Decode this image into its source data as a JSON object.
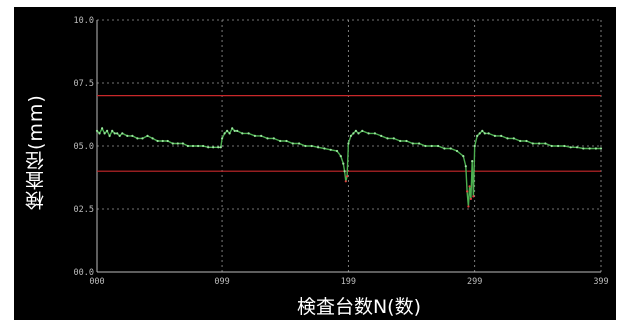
{
  "chart_data": {
    "type": "line",
    "title": "",
    "xlabel": "検査台数N(数)",
    "ylabel": "検査径(mm)",
    "xlim": [
      0,
      399
    ],
    "ylim": [
      0,
      10
    ],
    "x_ticks": [
      "000",
      "099",
      "199",
      "299",
      "399"
    ],
    "x_tick_values": [
      0,
      99,
      199,
      299,
      399
    ],
    "y_ticks": [
      "00.0",
      "02.5",
      "05.0",
      "07.5",
      "10.0"
    ],
    "y_tick_values": [
      0,
      2.5,
      5,
      7.5,
      10
    ],
    "grid": true,
    "limits": [
      {
        "value": 7.0,
        "color": "#c8282a"
      },
      {
        "value": 4.0,
        "color": "#c8282a"
      }
    ],
    "series": [
      {
        "color": "#4caf50",
        "points": [
          [
            0,
            5.6
          ],
          [
            2,
            5.5
          ],
          [
            4,
            5.7
          ],
          [
            6,
            5.5
          ],
          [
            8,
            5.6
          ],
          [
            10,
            5.4
          ],
          [
            12,
            5.6
          ],
          [
            14,
            5.5
          ],
          [
            16,
            5.5
          ],
          [
            18,
            5.4
          ],
          [
            20,
            5.5
          ],
          [
            24,
            5.4
          ],
          [
            28,
            5.4
          ],
          [
            32,
            5.3
          ],
          [
            36,
            5.3
          ],
          [
            40,
            5.4
          ],
          [
            44,
            5.3
          ],
          [
            48,
            5.2
          ],
          [
            52,
            5.2
          ],
          [
            56,
            5.2
          ],
          [
            60,
            5.1
          ],
          [
            64,
            5.1
          ],
          [
            68,
            5.1
          ],
          [
            72,
            5.0
          ],
          [
            76,
            5.0
          ],
          [
            80,
            5.0
          ],
          [
            84,
            5.0
          ],
          [
            88,
            4.95
          ],
          [
            92,
            4.95
          ],
          [
            96,
            4.95
          ],
          [
            98,
            4.95
          ],
          [
            99,
            5.3
          ],
          [
            101,
            5.5
          ],
          [
            103,
            5.6
          ],
          [
            105,
            5.5
          ],
          [
            107,
            5.7
          ],
          [
            109,
            5.6
          ],
          [
            111,
            5.6
          ],
          [
            115,
            5.5
          ],
          [
            120,
            5.5
          ],
          [
            125,
            5.4
          ],
          [
            130,
            5.4
          ],
          [
            135,
            5.3
          ],
          [
            140,
            5.3
          ],
          [
            145,
            5.2
          ],
          [
            150,
            5.2
          ],
          [
            155,
            5.1
          ],
          [
            160,
            5.1
          ],
          [
            165,
            5.0
          ],
          [
            170,
            5.0
          ],
          [
            175,
            4.95
          ],
          [
            180,
            4.9
          ],
          [
            185,
            4.85
          ],
          [
            190,
            4.8
          ],
          [
            193,
            4.6
          ],
          [
            195,
            4.3
          ],
          [
            196,
            4.0
          ],
          [
            197,
            3.6
          ],
          [
            198,
            3.8
          ],
          [
            199,
            5.1
          ],
          [
            201,
            5.4
          ],
          [
            203,
            5.5
          ],
          [
            205,
            5.6
          ],
          [
            207,
            5.5
          ],
          [
            210,
            5.6
          ],
          [
            215,
            5.5
          ],
          [
            220,
            5.5
          ],
          [
            225,
            5.4
          ],
          [
            230,
            5.3
          ],
          [
            235,
            5.3
          ],
          [
            240,
            5.2
          ],
          [
            245,
            5.2
          ],
          [
            250,
            5.1
          ],
          [
            255,
            5.1
          ],
          [
            260,
            5.0
          ],
          [
            265,
            5.0
          ],
          [
            270,
            5.0
          ],
          [
            275,
            4.9
          ],
          [
            280,
            4.9
          ],
          [
            285,
            4.8
          ],
          [
            290,
            4.6
          ],
          [
            292,
            4.2
          ],
          [
            293,
            3.2
          ],
          [
            294,
            2.6
          ],
          [
            295,
            3.4
          ],
          [
            296,
            2.9
          ],
          [
            297,
            4.4
          ],
          [
            298,
            3.0
          ],
          [
            299,
            5.0
          ],
          [
            301,
            5.4
          ],
          [
            303,
            5.5
          ],
          [
            305,
            5.6
          ],
          [
            307,
            5.5
          ],
          [
            310,
            5.5
          ],
          [
            315,
            5.4
          ],
          [
            320,
            5.4
          ],
          [
            325,
            5.3
          ],
          [
            330,
            5.3
          ],
          [
            335,
            5.2
          ],
          [
            340,
            5.2
          ],
          [
            345,
            5.1
          ],
          [
            350,
            5.1
          ],
          [
            355,
            5.1
          ],
          [
            360,
            5.0
          ],
          [
            365,
            5.0
          ],
          [
            370,
            5.0
          ],
          [
            375,
            4.95
          ],
          [
            380,
            4.95
          ],
          [
            385,
            4.9
          ],
          [
            390,
            4.9
          ],
          [
            395,
            4.9
          ],
          [
            399,
            4.9
          ]
        ]
      }
    ]
  }
}
